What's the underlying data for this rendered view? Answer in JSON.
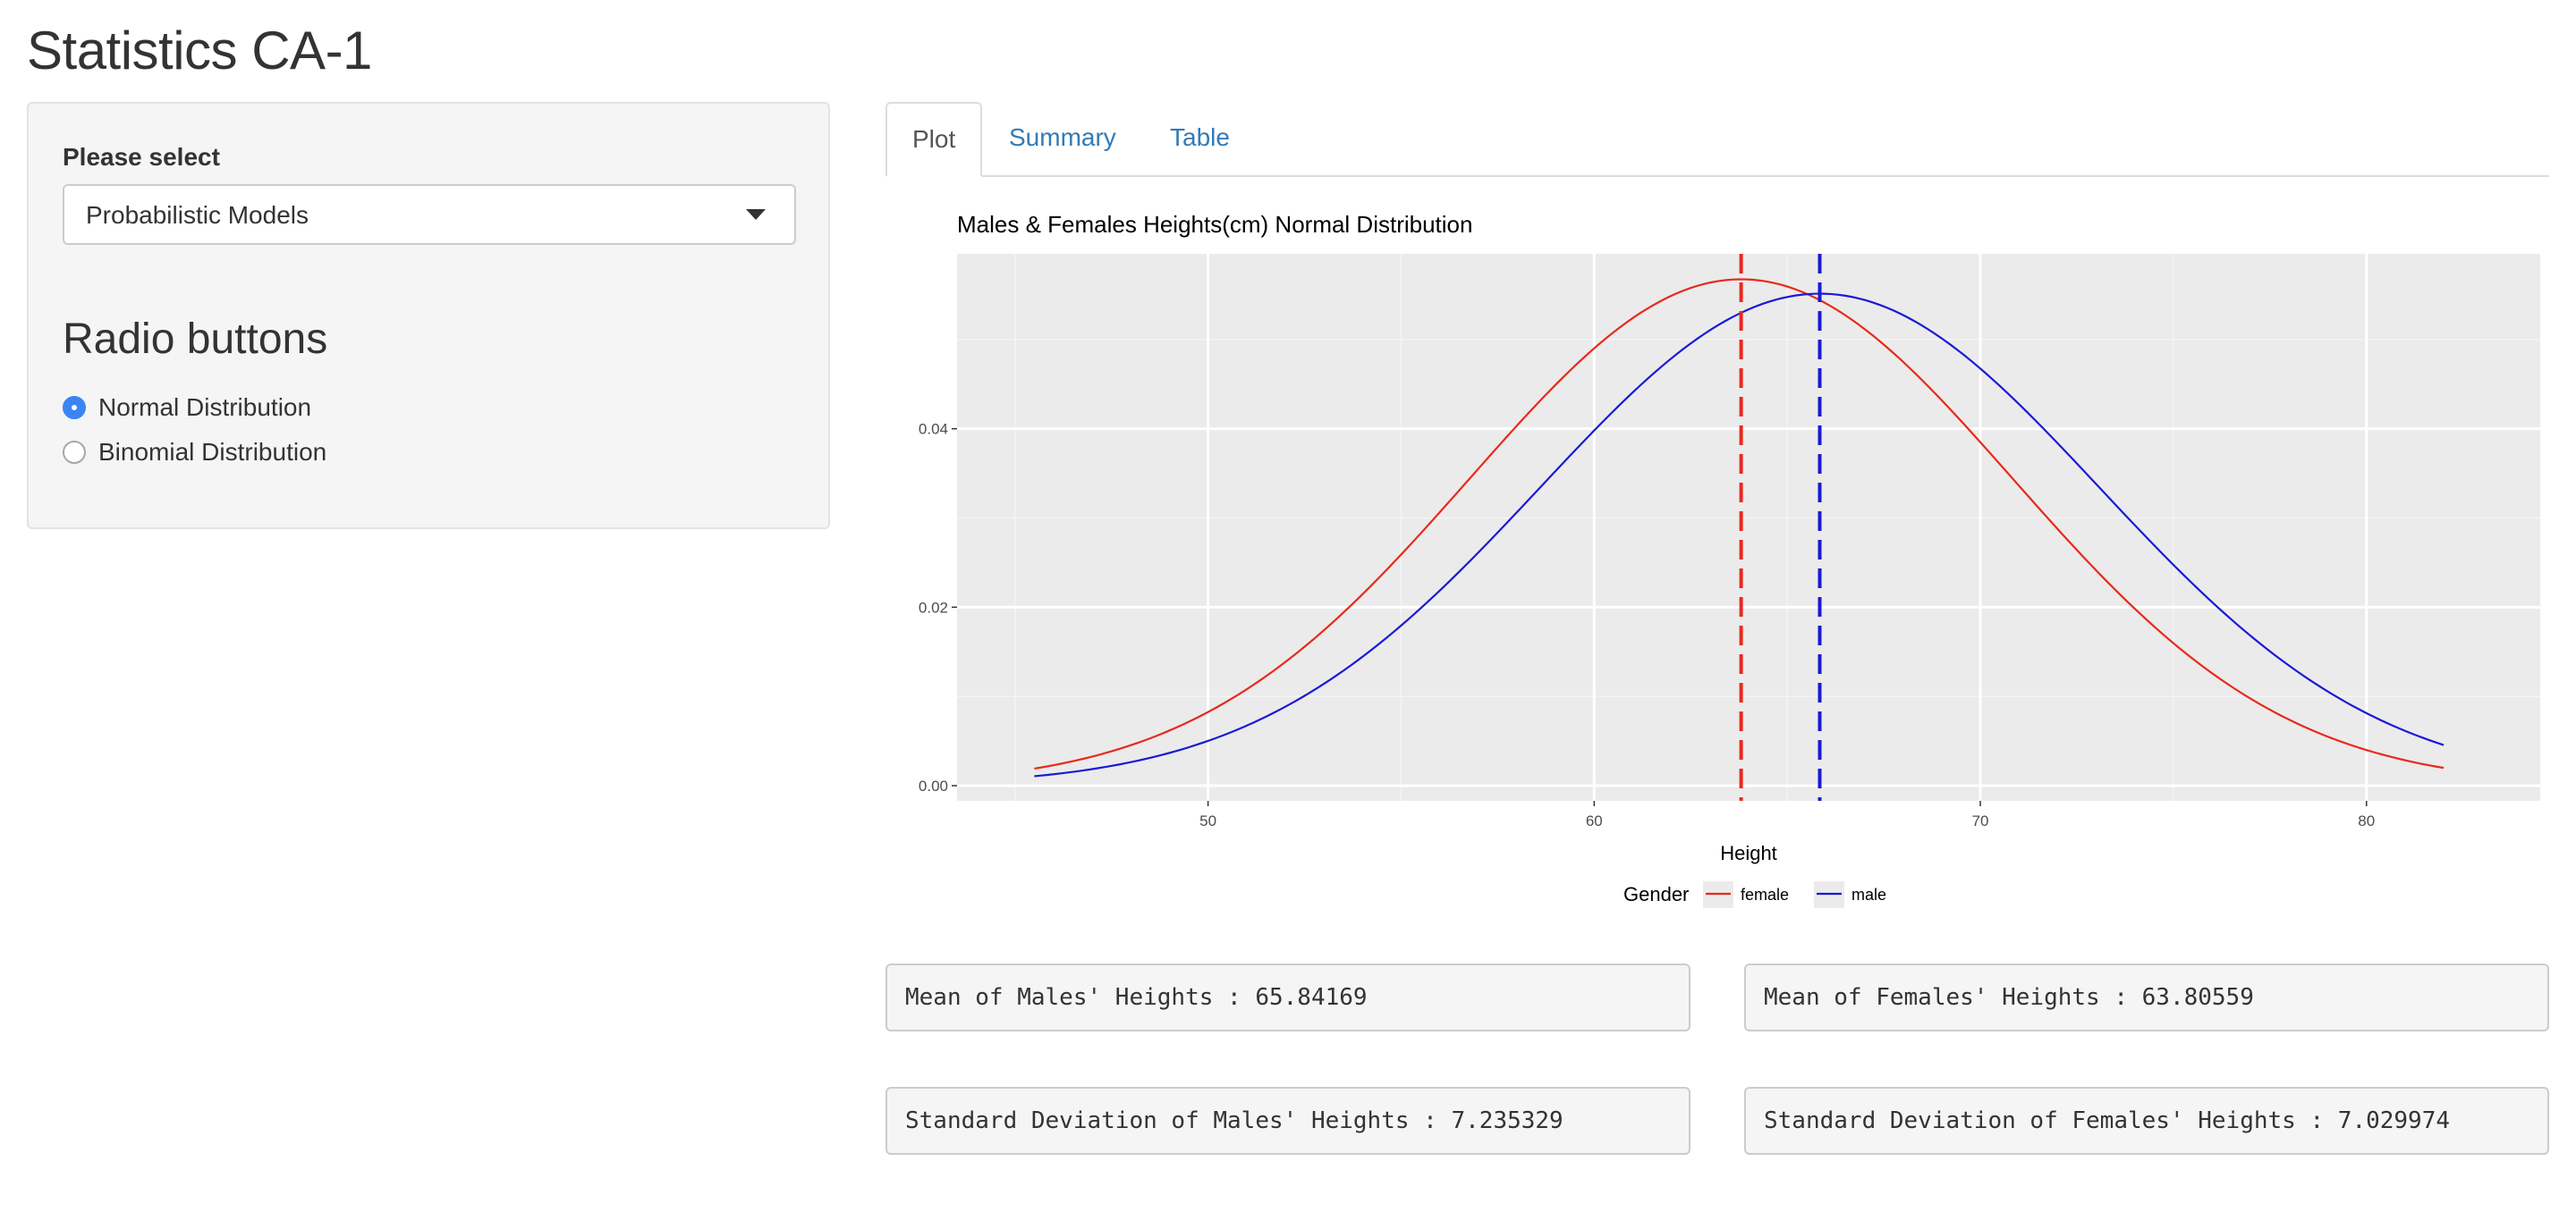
{
  "page": {
    "title": "Statistics CA-1"
  },
  "sidebar": {
    "select_label": "Please select",
    "select_value": "Probabilistic Models",
    "radio_heading": "Radio buttons",
    "radios": [
      {
        "label": "Normal Distribution",
        "checked": true
      },
      {
        "label": "Binomial Distribution",
        "checked": false
      }
    ]
  },
  "tabs": [
    {
      "label": "Plot",
      "active": true
    },
    {
      "label": "Summary",
      "active": false
    },
    {
      "label": "Table",
      "active": false
    }
  ],
  "chart_data": {
    "type": "line",
    "title": "Males & Females Heights(cm) Normal Distribution",
    "xlabel": "Height",
    "ylabel": "",
    "xlim": [
      43.5,
      84.5
    ],
    "ylim": [
      -0.0017,
      0.0596
    ],
    "x_ticks": [
      50,
      60,
      70,
      80
    ],
    "x_tick_labels": [
      "50",
      "60",
      "70",
      "80"
    ],
    "y_ticks": [
      0.0,
      0.02,
      0.04
    ],
    "y_tick_labels": [
      "0.00",
      "0.02",
      "0.04"
    ],
    "x_range": [
      45.5,
      82
    ],
    "grid": true,
    "legend": {
      "title": "Gender",
      "placement": "bottom"
    },
    "series": [
      {
        "name": "female",
        "color": "#e8291c",
        "mean": 63.80559,
        "sd": 7.029974
      },
      {
        "name": "male",
        "color": "#1a1ad6",
        "mean": 65.84169,
        "sd": 7.235329
      }
    ],
    "vlines": [
      {
        "series": "female",
        "x": 63.80559,
        "color": "#e8291c",
        "style": "dashed"
      },
      {
        "series": "male",
        "x": 65.84169,
        "color": "#1a1ad6",
        "style": "dashed"
      }
    ]
  },
  "stats": {
    "male_mean": "Mean of Males' Heights : 65.84169",
    "female_mean": "Mean of Females' Heights : 63.80559",
    "male_sd": "Standard Deviation of Males' Heights : 7.235329",
    "female_sd": "Standard Deviation of Females' Heights : 7.029974"
  }
}
